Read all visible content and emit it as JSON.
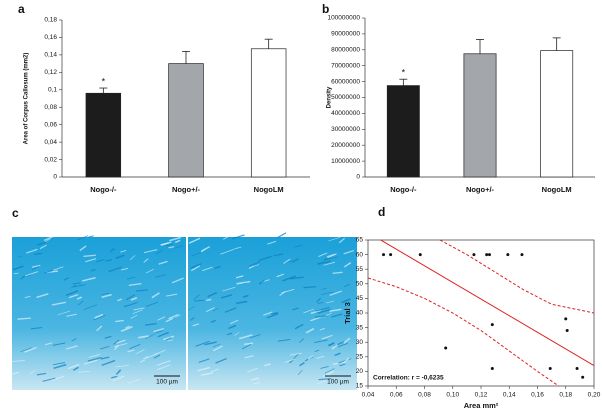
{
  "chart_data": [
    {
      "type": "bar",
      "panel": "a",
      "y_label": "Area of Corpus Callosum (mm2)",
      "categories": [
        "Nogo-/-",
        "Nogo+/-",
        "NogoLM"
      ],
      "values": [
        0.096,
        0.13,
        0.147
      ],
      "errors": [
        0.006,
        0.014,
        0.011
      ],
      "significance": [
        "*",
        null,
        null
      ],
      "colors": [
        "#1c1c1c",
        "#a3a7ab",
        "#ffffff"
      ],
      "ylim": [
        0,
        0.18
      ],
      "yticks": [
        0,
        {
          "value": 0.02,
          "label": "0,02"
        },
        {
          "value": 0.04,
          "label": "0,04"
        },
        {
          "value": 0.06,
          "label": "0,06"
        },
        {
          "value": 0.08,
          "label": "0,08"
        },
        {
          "value": 0.1,
          "label": "0,1"
        },
        {
          "value": 0.12,
          "label": "0,12"
        },
        {
          "value": 0.14,
          "label": "0,14"
        },
        {
          "value": 0.16,
          "label": "0,16"
        },
        {
          "value": 0.18,
          "label": "0,18"
        }
      ]
    },
    {
      "type": "bar",
      "panel": "b",
      "y_label": "Density",
      "categories": [
        "Nogo-/-",
        "Nogo+/-",
        "NogoLM"
      ],
      "values": [
        57500000,
        77500000,
        79500000
      ],
      "errors": [
        4000000,
        9000000,
        8000000
      ],
      "significance": [
        "*",
        null,
        null
      ],
      "colors": [
        "#1c1c1c",
        "#a3a7ab",
        "#ffffff"
      ],
      "ylim": [
        0,
        100000000
      ],
      "yticks": [
        0,
        10000000,
        20000000,
        30000000,
        40000000,
        50000000,
        60000000,
        70000000,
        80000000,
        90000000,
        100000000
      ]
    },
    {
      "type": "image",
      "panel": "c",
      "scale_bars": [
        "100 µm",
        "100 µm"
      ]
    },
    {
      "type": "scatter",
      "panel": "d",
      "x_label": "Area mm²",
      "y_label": "Trial 3",
      "annotation": "Correlation: r = -0,6235",
      "x": [
        0.051,
        0.056,
        0.077,
        0.115,
        0.124,
        0.126,
        0.139,
        0.149,
        0.095,
        0.128,
        0.128,
        0.18,
        0.181,
        0.169,
        0.188,
        0.192
      ],
      "y": [
        60,
        60,
        60,
        60,
        60,
        60,
        60,
        60,
        28,
        36,
        21,
        38,
        34,
        21,
        21,
        18
      ],
      "color": "#111111",
      "line_color": "#e02020",
      "fit": {
        "x": [
          0.049,
          0.2
        ],
        "y": [
          65,
          22
        ]
      },
      "upper": {
        "x": [
          0.091,
          0.11,
          0.13,
          0.15,
          0.17,
          0.2
        ],
        "y": [
          65,
          60,
          54,
          48,
          43,
          40
        ]
      },
      "lower": {
        "x": [
          0.04,
          0.06,
          0.08,
          0.1,
          0.12,
          0.14,
          0.16,
          0.175
        ],
        "y": [
          52,
          49,
          45,
          40,
          34,
          27,
          20,
          15
        ]
      },
      "xlim": [
        0.04,
        0.2
      ],
      "ylim": [
        15,
        65
      ],
      "xticks": [
        {
          "value": 0.04,
          "label": "0,04"
        },
        {
          "value": 0.06,
          "label": "0,06"
        },
        {
          "value": 0.08,
          "label": "0,08"
        },
        {
          "value": 0.1,
          "label": "0,10"
        },
        {
          "value": 0.12,
          "label": "0,12"
        },
        {
          "value": 0.14,
          "label": "0,14"
        },
        {
          "value": 0.16,
          "label": "0,16"
        },
        {
          "value": 0.18,
          "label": "0,18"
        },
        {
          "value": 0.2,
          "label": "0,20"
        }
      ],
      "yticks": [
        15,
        20,
        25,
        30,
        35,
        40,
        45,
        50,
        55,
        60,
        65
      ]
    }
  ]
}
